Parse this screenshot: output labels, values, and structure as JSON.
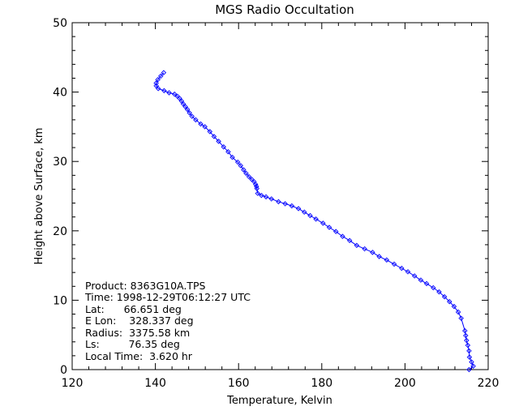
{
  "chart_data": {
    "type": "line",
    "title": "MGS Radio Occultation",
    "xlabel": "Temperature, Kelvin",
    "ylabel": "Height above Surface, km",
    "xlim": [
      120,
      220
    ],
    "ylim": [
      0,
      50
    ],
    "x_ticks": [
      "120",
      "140",
      "160",
      "180",
      "200",
      "220"
    ],
    "y_ticks": [
      "0",
      "10",
      "20",
      "30",
      "40",
      "50"
    ],
    "grid": false,
    "marker": "diamond",
    "line_color": "#0000ff",
    "series": [
      {
        "x": [
          215.4,
          216.4,
          216.0,
          215.5,
          215.4,
          215.1,
          214.8,
          214.6,
          214.4,
          213.5,
          212.8,
          211.8,
          210.7,
          209.5,
          208.2,
          206.8,
          205.2,
          203.8,
          202.3,
          200.7,
          199.2,
          197.4,
          195.6,
          193.8,
          192.2,
          190.3,
          188.4,
          186.7,
          185.0,
          183.4,
          181.8,
          180.3,
          178.6,
          177.2,
          175.8,
          174.4,
          172.8,
          171.2,
          169.6,
          167.9,
          166.6,
          165.5,
          164.6,
          164.4,
          164.3,
          164.1,
          163.7,
          163.2,
          162.5,
          161.8,
          161.2,
          160.5,
          159.8,
          158.5,
          157.5,
          156.4,
          155.2,
          154.1,
          153.1,
          151.9,
          150.9,
          149.7,
          148.8,
          148.2,
          147.7,
          147.2,
          146.7,
          146.3,
          145.8,
          145.3,
          144.6,
          143.3,
          142.1,
          140.7,
          140.2,
          140.2,
          140.6,
          141.3,
          142.0
        ],
        "y": [
          0.0,
          0.5,
          1.1,
          1.8,
          2.7,
          3.5,
          4.2,
          4.9,
          5.6,
          7.4,
          8.3,
          9.1,
          9.8,
          10.5,
          11.2,
          11.8,
          12.4,
          12.9,
          13.5,
          14.1,
          14.6,
          15.2,
          15.8,
          16.3,
          16.9,
          17.4,
          17.9,
          18.6,
          19.2,
          19.9,
          20.5,
          21.1,
          21.7,
          22.2,
          22.7,
          23.2,
          23.6,
          23.9,
          24.2,
          24.6,
          24.9,
          25.1,
          25.4,
          26.1,
          26.4,
          26.7,
          27.1,
          27.4,
          27.8,
          28.3,
          28.8,
          29.4,
          29.9,
          30.6,
          31.4,
          32.1,
          32.9,
          33.6,
          34.3,
          35.0,
          35.4,
          36.0,
          36.5,
          37.0,
          37.5,
          37.9,
          38.3,
          38.7,
          39.1,
          39.4,
          39.7,
          39.9,
          40.2,
          40.5,
          40.9,
          41.3,
          41.8,
          42.3,
          42.8
        ]
      }
    ]
  },
  "info": {
    "product": "Product: 8363G10A.TPS",
    "time": "Time: 1998-12-29T06:12:27 UTC",
    "lat": "Lat:      66.651 deg",
    "elon": "E Lon:    328.337 deg",
    "radius": "Radius:  3375.58 km",
    "ls": "Ls:         76.35 deg",
    "local_time": "Local Time:  3.620 hr"
  }
}
